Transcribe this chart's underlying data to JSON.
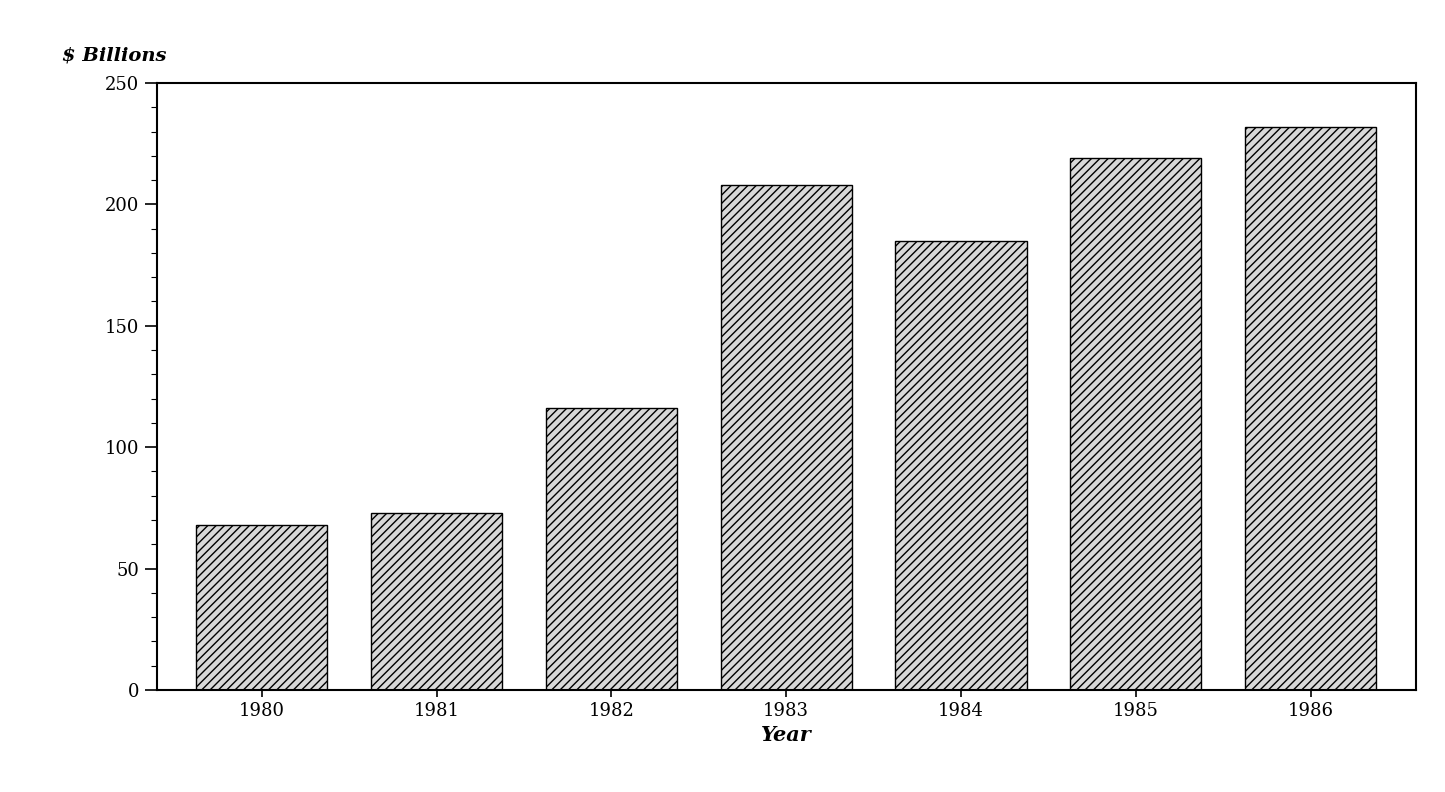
{
  "categories": [
    "1980",
    "1981",
    "1982",
    "1983",
    "1984",
    "1985",
    "1986"
  ],
  "values": [
    68,
    73,
    116,
    208,
    185,
    219,
    232
  ],
  "ylabel": "$ Billions",
  "xlabel": "Year",
  "ylim": [
    0,
    250
  ],
  "yticks": [
    0,
    50,
    100,
    150,
    200,
    250
  ],
  "bar_color": "#d8d8d8",
  "bar_edgecolor": "#000000",
  "hatch": "////",
  "background_color": "#ffffff",
  "tick_fontsize": 13,
  "ylabel_fontsize": 14,
  "xlabel_fontsize": 15,
  "bar_width": 0.75
}
